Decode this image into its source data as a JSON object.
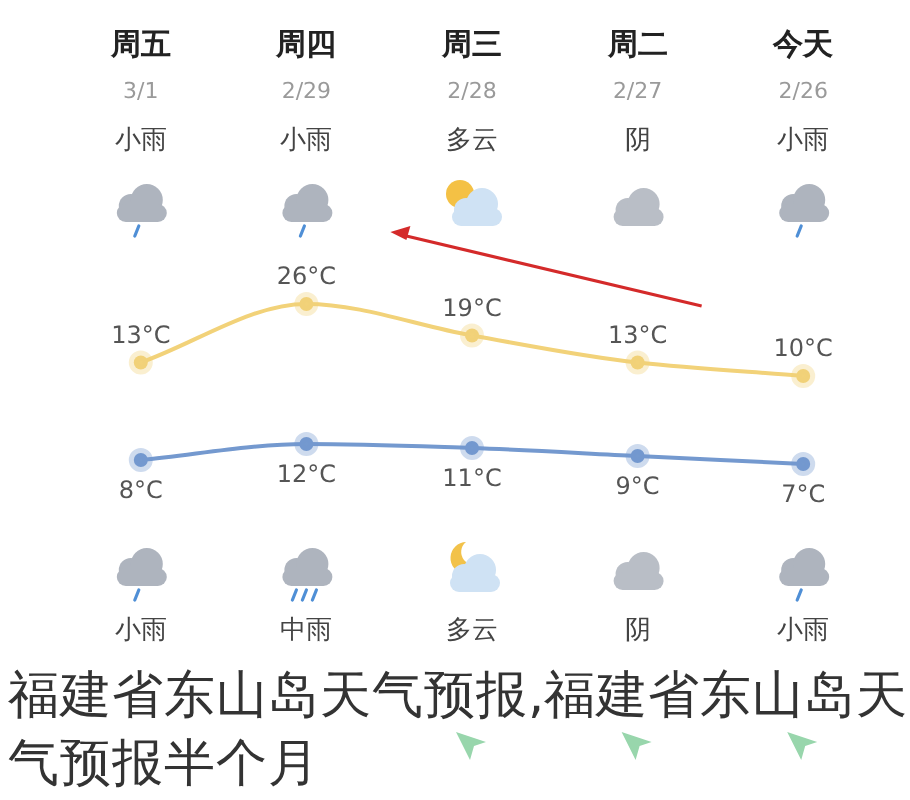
{
  "chart_data": [
    {
      "type": "line",
      "categories": [
        "周五\n3/1\n小雨",
        "周四\n2/29\n小雨",
        "周三\n2/28\n多云",
        "周二\n2/27\n阴",
        "今天\n2/26\n小雨"
      ],
      "series": [
        {
          "color": "#f2d279",
          "values": [
            13,
            26,
            19,
            13,
            10
          ],
          "value_labels": [
            "13°C",
            "26°C",
            "19°C",
            "13°C",
            "10°C"
          ]
        }
      ],
      "marker": "circle",
      "line_style": "solid"
    },
    {
      "type": "line",
      "title": "福建省东山岛天气预报,福建省东山岛天气预报半个月",
      "categories": [
        null,
        null,
        null,
        null,
        null
      ],
      "series": [
        {
          "color": "#7499cf",
          "values": [
            8,
            12,
            11,
            9,
            7
          ],
          "value_labels": [
            "8°C",
            "12°C",
            "11°C",
            "9°C",
            "7°C"
          ]
        }
      ],
      "annotations": [
        "小雨",
        "中雨",
        "多云",
        "阴",
        "小雨"
      ],
      "marker": "circle",
      "line_style": "solid"
    }
  ]
}
